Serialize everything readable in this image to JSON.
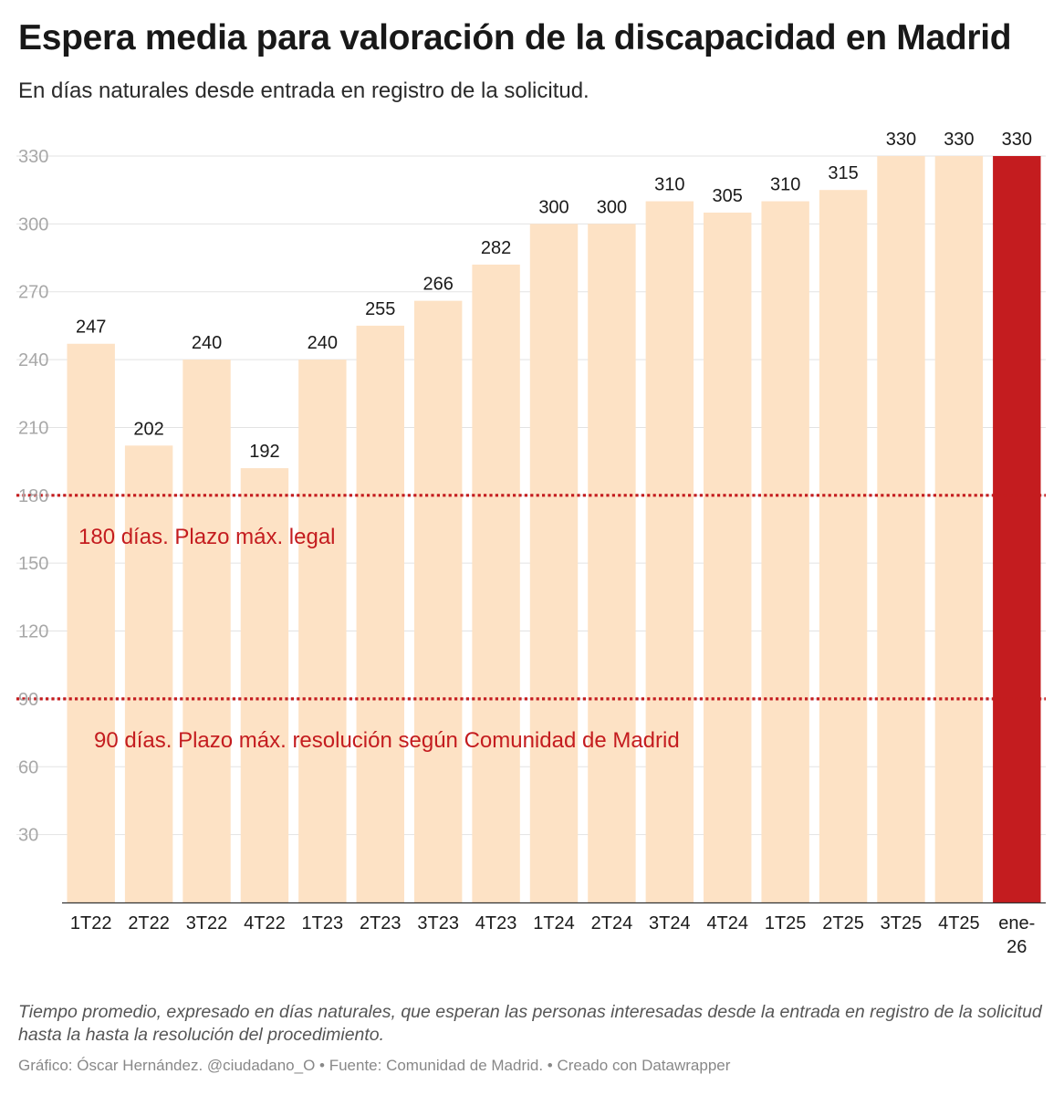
{
  "header": {
    "title": "Espera media para valoración de la discapacidad en Madrid",
    "subtitle": "En días naturales desde entrada en registro de la solicitud."
  },
  "chart_data": {
    "type": "bar",
    "categories": [
      "1T22",
      "2T22",
      "3T22",
      "4T22",
      "1T23",
      "2T23",
      "3T23",
      "4T23",
      "1T24",
      "2T24",
      "3T24",
      "4T24",
      "1T25",
      "2T25",
      "3T25",
      "4T25",
      "ene-26"
    ],
    "values": [
      247,
      202,
      240,
      192,
      240,
      255,
      266,
      282,
      300,
      300,
      310,
      305,
      310,
      315,
      330,
      330,
      330
    ],
    "ylim": [
      0,
      330
    ],
    "yticks": [
      30,
      60,
      90,
      120,
      150,
      180,
      210,
      240,
      270,
      300,
      330
    ],
    "grid": true,
    "colors": {
      "bar": "#fde2c5",
      "highlight": "#c41c1f",
      "reference": "#c41c1f"
    },
    "highlight_category": "ene-26",
    "reference_lines": [
      {
        "value": 180,
        "label": "180 días. Plazo máx. legal"
      },
      {
        "value": 90,
        "label": "90 días. Plazo máx. resolución según Comunidad de Madrid"
      }
    ]
  },
  "footer": {
    "notes": "Tiempo promedio, expresado en días naturales, que esperan las personas interesadas desde la entrada en registro de la solicitud hasta la hasta la resolución del procedimiento.",
    "credit": "Gráfico: Óscar Hernández. @ciudadano_O • Fuente: Comunidad de Madrid. • Creado con Datawrapper"
  }
}
